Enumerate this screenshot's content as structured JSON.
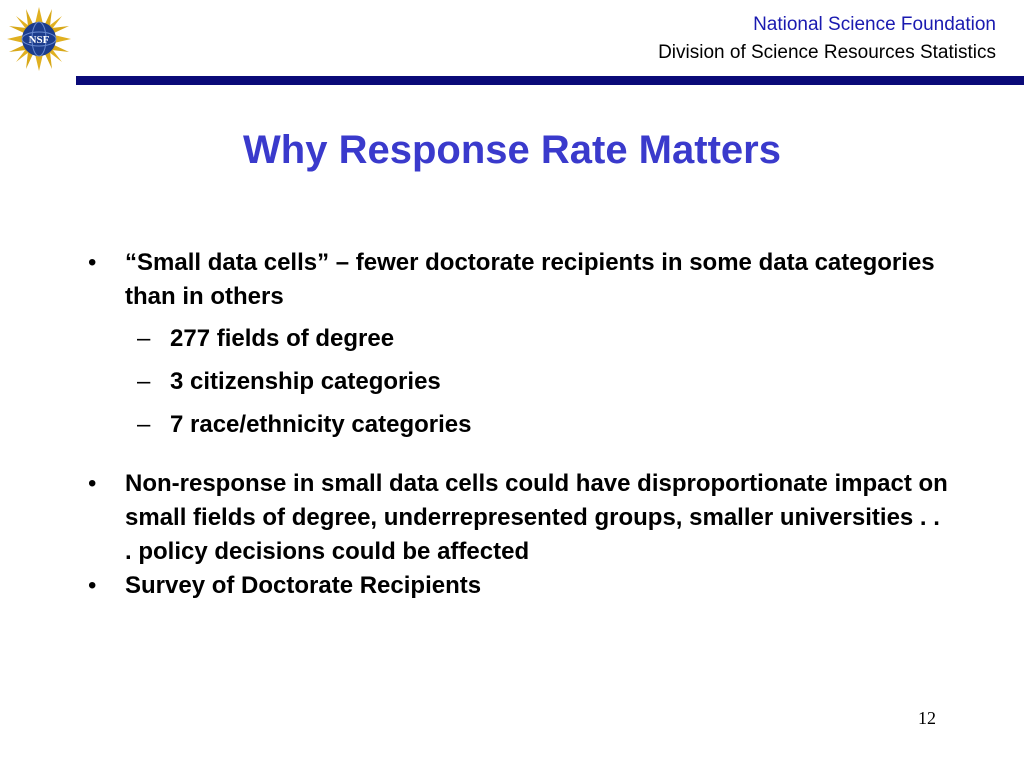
{
  "header": {
    "organization": "National Science Foundation",
    "division": "Division of Science Resources Statistics",
    "logo_text": "NSF",
    "logo_icon": "nsf-seal-icon",
    "rule_color": "#0a0a78"
  },
  "slide": {
    "title": "Why Response Rate Matters",
    "title_color": "#3a3acc",
    "bullets": [
      {
        "marker": "•",
        "text": "“Small data cells” – fewer doctorate recipients in some data categories than in others",
        "sub_items": [
          {
            "marker": "–",
            "text": "277 fields of degree"
          },
          {
            "marker": "–",
            "text": "3 citizenship categories"
          },
          {
            "marker": "–",
            "text": "7 race/ethnicity categories"
          }
        ]
      },
      {
        "marker": "•",
        "text": "Non-response in small data cells could have disproportionate impact on small fields of degree, underrepresented groups, smaller universities . . . policy decisions could be affected"
      },
      {
        "marker": "•",
        "text": "Survey of Doctorate Recipients"
      }
    ],
    "page_number": "12"
  }
}
